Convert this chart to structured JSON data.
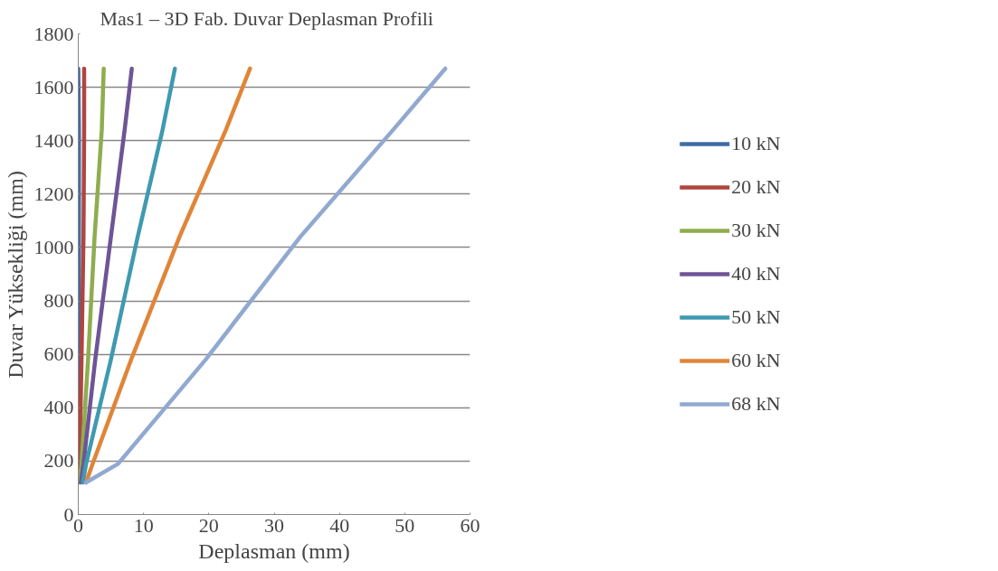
{
  "chart_data": {
    "type": "line",
    "title": "Mas1 – 3D Fab.    Duvar Deplasman Profili",
    "xlabel": "Deplasman (mm)",
    "ylabel": "Duvar Yüksekliği (mm)",
    "xlim": [
      0,
      60
    ],
    "xticks": [
      0,
      10,
      20,
      30,
      40,
      50,
      60
    ],
    "ylim": [
      0,
      1800
    ],
    "yticks": [
      0,
      200,
      400,
      600,
      800,
      1000,
      1200,
      1400,
      1600,
      1800
    ],
    "grid": "y",
    "legend": "right",
    "marker": "none",
    "line_style": "solid",
    "series": [
      {
        "name": "10 kN",
        "color": "#3f6ba5",
        "x": [
          0.0,
          0.1,
          0.1,
          0.1,
          0.1,
          0.0
        ],
        "values": [
          120,
          190,
          580,
          1040,
          1440,
          1670
        ]
      },
      {
        "name": "20 kN",
        "color": "#b0453f",
        "x": [
          0.1,
          0.2,
          0.5,
          0.8,
          0.9,
          0.9
        ],
        "values": [
          120,
          190,
          580,
          1040,
          1440,
          1670
        ]
      },
      {
        "name": "30 kN",
        "color": "#8fad4e",
        "x": [
          0.2,
          0.5,
          1.5,
          2.5,
          3.6,
          3.9
        ],
        "values": [
          120,
          190,
          580,
          1040,
          1440,
          1670
        ]
      },
      {
        "name": "40 kN",
        "color": "#6f5496",
        "x": [
          0.4,
          0.8,
          2.6,
          5.0,
          7.1,
          8.2
        ],
        "values": [
          120,
          190,
          580,
          1040,
          1440,
          1670
        ]
      },
      {
        "name": "50 kN",
        "color": "#3f9ab0",
        "x": [
          0.7,
          1.2,
          5.0,
          9.1,
          12.9,
          14.8
        ],
        "values": [
          120,
          190,
          580,
          1040,
          1440,
          1670
        ]
      },
      {
        "name": "60 kN",
        "color": "#e08538",
        "x": [
          1.2,
          2.2,
          8.1,
          15.5,
          22.6,
          26.3
        ],
        "values": [
          120,
          190,
          580,
          1040,
          1440,
          1670
        ]
      },
      {
        "name": "68 kN",
        "color": "#91a9d0",
        "x": [
          1.2,
          6.1,
          19.5,
          34.0,
          48.2,
          56.2
        ],
        "values": [
          120,
          190,
          580,
          1040,
          1440,
          1670
        ]
      }
    ]
  }
}
